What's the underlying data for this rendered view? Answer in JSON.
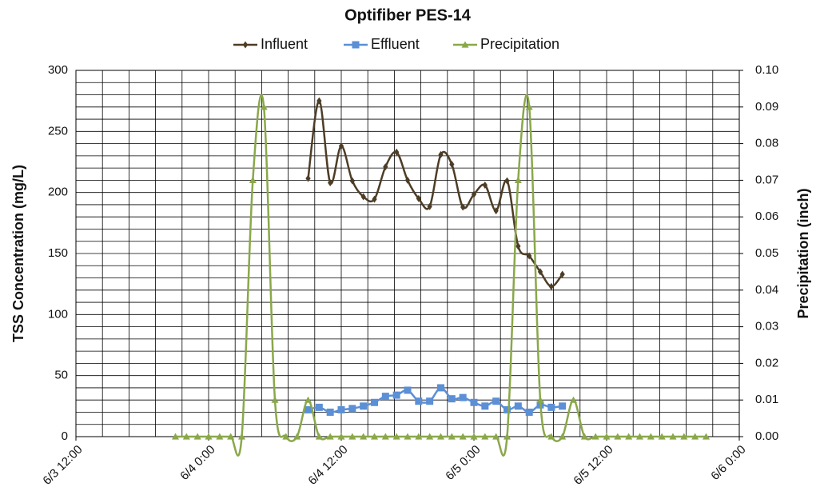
{
  "chart_data": {
    "type": "line",
    "title": "Optifiber PES-14",
    "ylabel": "TSS Concentration (mg/L)",
    "y2label": "Precipitation (inch)",
    "xlim": [
      "6/3 12:00",
      "6/6 0:00"
    ],
    "xticks": [
      "6/3 12:00",
      {
        "value": "6/3 14:24",
        "label": null
      },
      {
        "value": "6/3 16:48",
        "label": null
      },
      {
        "value": "6/3 19:12",
        "label": null
      },
      {
        "value": "6/3 21:36",
        "label": null
      },
      "6/4 0:00",
      {
        "value": "6/4 2:24",
        "label": null
      },
      {
        "value": "6/4 4:48",
        "label": null
      },
      {
        "value": "6/4 7:12",
        "label": null
      },
      {
        "value": "6/4 9:36",
        "label": null
      },
      "6/4 12:00",
      {
        "value": "6/4 14:24",
        "label": null
      },
      {
        "value": "6/4 16:48",
        "label": null
      },
      {
        "value": "6/4 19:12",
        "label": null
      },
      {
        "value": "6/4 21:36",
        "label": null
      },
      "6/5 0:00",
      {
        "value": "6/5 2:24",
        "label": null
      },
      {
        "value": "6/5 4:48",
        "label": null
      },
      {
        "value": "6/5 7:12",
        "label": null
      },
      {
        "value": "6/5 9:36",
        "label": null
      },
      "6/5 12:00",
      {
        "value": "6/5 14:24",
        "label": null
      },
      {
        "value": "6/5 16:48",
        "label": null
      },
      {
        "value": "6/5 19:12",
        "label": null
      },
      {
        "value": "6/5 21:36",
        "label": null
      },
      "6/6 0:00"
    ],
    "ylim": [
      0,
      300
    ],
    "yticks": [
      0,
      {
        "value": 10,
        "label": null
      },
      {
        "value": 20,
        "label": null
      },
      {
        "value": 30,
        "label": null
      },
      {
        "value": 40,
        "label": null
      },
      50,
      {
        "value": 60,
        "label": null
      },
      {
        "value": 70,
        "label": null
      },
      {
        "value": 80,
        "label": null
      },
      {
        "value": 90,
        "label": null
      },
      100,
      {
        "value": 110,
        "label": null
      },
      {
        "value": 120,
        "label": null
      },
      {
        "value": 130,
        "label": null
      },
      {
        "value": 140,
        "label": null
      },
      150,
      {
        "value": 160,
        "label": null
      },
      {
        "value": 170,
        "label": null
      },
      {
        "value": 180,
        "label": null
      },
      {
        "value": 190,
        "label": null
      },
      200,
      {
        "value": 210,
        "label": null
      },
      {
        "value": 220,
        "label": null
      },
      {
        "value": 230,
        "label": null
      },
      {
        "value": 240,
        "label": null
      },
      250,
      {
        "value": 260,
        "label": null
      },
      {
        "value": 270,
        "label": null
      },
      {
        "value": 280,
        "label": null
      },
      {
        "value": 290,
        "label": null
      },
      300
    ],
    "y2lim": [
      0,
      0.1
    ],
    "y2ticks": [
      {
        "value": 0,
        "label": "0.00"
      },
      {
        "value": 0.01,
        "label": "0.01"
      },
      {
        "value": 0.02,
        "label": "0.02"
      },
      {
        "value": 0.03,
        "label": "0.03"
      },
      {
        "value": 0.04,
        "label": "0.04"
      },
      {
        "value": 0.05,
        "label": "0.05"
      },
      {
        "value": 0.06,
        "label": "0.06"
      },
      {
        "value": 0.07,
        "label": "0.07"
      },
      {
        "value": 0.08,
        "label": "0.08"
      },
      {
        "value": 0.09,
        "label": "0.09"
      },
      {
        "value": 0.1,
        "label": "0.10"
      }
    ],
    "grid": true,
    "legend": "top",
    "series": [
      {
        "name": "Influent",
        "color": "#4d3d26",
        "marker": "diamond",
        "x": [
          "6/4 9:00",
          "6/4 10:00",
          "6/4 11:00",
          "6/4 12:00",
          "6/4 13:00",
          "6/4 14:00",
          "6/4 15:00",
          "6/4 16:00",
          "6/4 17:00",
          "6/4 18:00",
          "6/4 19:00",
          "6/4 20:00",
          "6/4 21:00",
          "6/4 22:00",
          "6/4 23:00",
          "6/5 0:00",
          "6/5 1:00",
          "6/5 2:00",
          "6/5 3:00",
          "6/5 4:00",
          "6/5 5:00",
          "6/5 6:00",
          "6/5 7:00",
          "6/5 8:00"
        ],
        "values": [
          211.5,
          275,
          208,
          238,
          209.5,
          196.5,
          194.5,
          221,
          233,
          210,
          195,
          188.5,
          231,
          223,
          188,
          198.5,
          206,
          185,
          209.5,
          156,
          148,
          135,
          123,
          133
        ]
      },
      {
        "name": "Effluent",
        "color": "#5b8fd6",
        "marker": "square",
        "x": [
          "6/4 9:00",
          "6/4 10:00",
          "6/4 11:00",
          "6/4 12:00",
          "6/4 13:00",
          "6/4 14:00",
          "6/4 15:00",
          "6/4 16:00",
          "6/4 17:00",
          "6/4 18:00",
          "6/4 19:00",
          "6/4 20:00",
          "6/4 21:00",
          "6/4 22:00",
          "6/4 23:00",
          "6/5 0:00",
          "6/5 1:00",
          "6/5 2:00",
          "6/5 3:00",
          "6/5 4:00",
          "6/5 5:00",
          "6/5 6:00",
          "6/5 7:00",
          "6/5 8:00"
        ],
        "values": [
          22,
          24,
          20,
          22,
          23,
          25,
          28,
          33,
          34,
          38,
          29,
          29,
          40,
          31,
          32,
          28,
          25,
          29,
          22,
          25,
          20,
          26,
          24,
          25
        ]
      },
      {
        "name": "Precipitation",
        "color": "#8aa84a",
        "marker": "triangle",
        "axis": "y2",
        "x": [
          "6/3 21:00",
          "6/3 22:00",
          "6/3 23:00",
          "6/4 0:00",
          "6/4 1:00",
          "6/4 2:00",
          "6/4 3:00",
          "6/4 4:00",
          "6/4 5:00",
          "6/4 6:00",
          "6/4 7:00",
          "6/4 8:00",
          "6/4 9:00",
          "6/4 10:00",
          "6/4 11:00",
          "6/4 12:00",
          "6/4 13:00",
          "6/4 14:00",
          "6/4 15:00",
          "6/4 16:00",
          "6/4 17:00",
          "6/4 18:00",
          "6/4 19:00",
          "6/4 20:00",
          "6/4 21:00",
          "6/4 22:00",
          "6/4 23:00",
          "6/5 0:00",
          "6/5 1:00",
          "6/5 2:00",
          "6/5 3:00",
          "6/5 4:00",
          "6/5 5:00",
          "6/5 6:00",
          "6/5 7:00",
          "6/5 8:00",
          "6/5 9:00",
          "6/5 10:00",
          "6/5 11:00",
          "6/5 12:00",
          "6/5 13:00",
          "6/5 14:00",
          "6/5 15:00",
          "6/5 16:00",
          "6/5 17:00",
          "6/5 18:00",
          "6/5 19:00",
          "6/5 20:00",
          "6/5 21:00"
        ],
        "values": [
          0,
          0,
          0,
          0,
          0,
          0,
          0,
          0.07,
          0.09,
          0.01,
          0,
          0,
          0.01,
          0,
          0,
          0,
          0,
          0,
          0,
          0,
          0,
          0,
          0,
          0,
          0,
          0,
          0,
          0,
          0,
          0,
          0,
          0.07,
          0.09,
          0.01,
          0,
          0,
          0.01,
          0,
          0,
          0,
          0,
          0,
          0,
          0,
          0,
          0,
          0,
          0,
          0
        ]
      }
    ]
  }
}
